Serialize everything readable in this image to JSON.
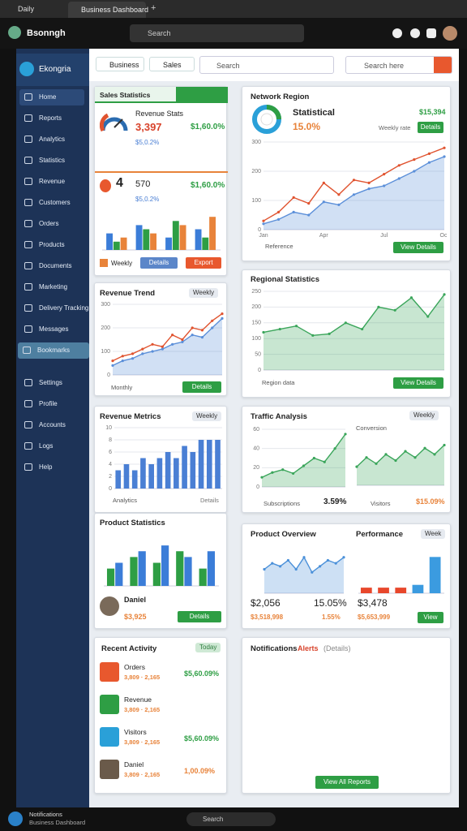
{
  "browser": {
    "tabs": [
      "Daily",
      "Business Dashboard"
    ],
    "new_tab": "+"
  },
  "header": {
    "title": "Bsonngh",
    "search": "Search"
  },
  "sidebar": {
    "brand": "Ekongria",
    "items": [
      "Home",
      "Reports",
      "Analytics",
      "Statistics",
      "Revenue",
      "Customers",
      "Orders",
      "Products",
      "Documents",
      "Marketing",
      "Delivery Tracking",
      "Messages",
      "Bookmarks",
      "Settings",
      "Profile",
      "Accounts",
      "Logs",
      "Help"
    ]
  },
  "toolbar": {
    "tabs": [
      "Business",
      "Sales"
    ],
    "search": "Search",
    "search2": "Search here"
  },
  "cards": {
    "sales": {
      "title": "Sales Statistics",
      "gauge_label": "Revenue Stats",
      "value": "3,397",
      "change": "$1,60.0%",
      "sub": "$5,0.2%",
      "count": "4",
      "value2": "570",
      "change2": "$1,60.0%",
      "sub2": "$5,0.2%",
      "chart": {
        "type": "bar",
        "ylim": [
          0,
          10
        ],
        "series": [
          {
            "color": "#3b7dd8",
            "values": [
              4,
              6,
              3,
              5
            ]
          },
          {
            "color": "#2e9e44",
            "values": [
              2,
              5,
              7,
              3
            ]
          },
          {
            "color": "#e8833a",
            "values": [
              3,
              4,
              6,
              8
            ]
          }
        ]
      },
      "actions": [
        "Weekly",
        "Details",
        "Export"
      ]
    },
    "network": {
      "title": "Network Region",
      "label": "Statistical",
      "rate": "15.0%",
      "amount": "$15,394",
      "legend": "Weekly rate",
      "button": "Details",
      "footer": "Reference",
      "footer_button": "View Details",
      "chart": {
        "type": "area",
        "ylim": [
          0,
          300
        ],
        "yticks": [
          0,
          100,
          200,
          300
        ],
        "categories": [
          "Jan",
          null,
          null,
          null,
          "Apr",
          null,
          null,
          null,
          "Jul",
          null,
          null,
          null,
          "Oct"
        ],
        "series": [
          {
            "color": "#5b8fd9",
            "area": true,
            "values": [
              20,
              35,
              60,
              50,
              95,
              85,
              120,
              140,
              150,
              175,
              200,
              230,
              250
            ]
          },
          {
            "color": "#e0532f",
            "values": [
              30,
              60,
              110,
              90,
              160,
              120,
              170,
              160,
              190,
              220,
              240,
              260,
              280
            ]
          }
        ]
      }
    },
    "trend": {
      "title": "Revenue Trend",
      "pill": "Weekly",
      "footer": "Monthly",
      "button": "Details",
      "chart": {
        "type": "line",
        "ylim": [
          0,
          300
        ],
        "yticks": [
          0,
          100,
          200,
          300
        ],
        "series": [
          {
            "color": "#5b8fd9",
            "area": true,
            "values": [
              40,
              60,
              70,
              90,
              100,
              110,
              130,
              140,
              170,
              160,
              200,
              240
            ]
          },
          {
            "color": "#e0532f",
            "values": [
              60,
              80,
              90,
              110,
              130,
              120,
              170,
              150,
              200,
              190,
              230,
              260
            ]
          }
        ]
      }
    },
    "region": {
      "title": "Regional Statistics",
      "footer": "Region data",
      "button": "View Details",
      "chart": {
        "type": "area",
        "ylim": [
          0,
          250
        ],
        "yticks": [
          0,
          50,
          100,
          150,
          200,
          250
        ],
        "series": [
          {
            "color": "#3aa55a",
            "area": true,
            "values": [
              120,
              130,
              140,
              110,
              115,
              150,
              130,
              200,
              190,
              230,
              170,
              240
            ]
          }
        ]
      }
    },
    "metrics": {
      "title": "Revenue Metrics",
      "pill": "Weekly",
      "footer": "Analytics",
      "link": "Details",
      "chart": {
        "type": "bar",
        "ylim": [
          0,
          10
        ],
        "yticks": [
          0,
          2,
          4,
          6,
          8,
          10
        ],
        "series": [
          {
            "color": "#4a7fd4",
            "values": [
              3,
              4,
              3,
              5,
              4,
              5,
              6,
              5,
              7,
              6,
              8,
              8,
              8
            ]
          }
        ]
      }
    },
    "traffic": {
      "title": "Traffic Analysis",
      "pill": "Weekly",
      "subtitle": "Conversion",
      "left_label": "Subscriptions",
      "left_value": "3.59%",
      "right_label": "Visitors",
      "right_value": "$15.09%",
      "chart": {
        "type": "area",
        "ylim": [
          0,
          60
        ],
        "yticks": [
          0,
          20,
          40,
          60
        ],
        "series": [
          {
            "color": "#3aa55a",
            "area": true,
            "values": [
              10,
              15,
              18,
              14,
              22,
              30,
              26,
              40,
              55
            ]
          }
        ]
      },
      "chart2": {
        "type": "area",
        "ylim": [
          0,
          80
        ],
        "series": [
          {
            "color": "#3aa55a",
            "area": true,
            "values": [
              30,
              45,
              35,
              50,
              40,
              55,
              45,
              60,
              50,
              65
            ]
          }
        ]
      }
    },
    "product": {
      "title": "Product Statistics",
      "name": "Daniel",
      "amount": "$3,925",
      "button": "Details",
      "chart": {
        "type": "bar",
        "ylim": [
          0,
          8
        ],
        "series": [
          {
            "color": "#2e9e44",
            "values": [
              3,
              5,
              4,
              6,
              3
            ]
          },
          {
            "color": "#3b7dd8",
            "values": [
              4,
              6,
              7,
              5,
              6
            ]
          }
        ]
      }
    },
    "overview": {
      "title": "Product Overview",
      "title2": "Performance",
      "pill": "Week",
      "v1": "$2,056",
      "v2": "15.05%",
      "v3": "$3,478",
      "s1": "$3,518,998",
      "s2": "1.55%",
      "s3": "$5,653,999",
      "button": "View",
      "chart": {
        "type": "area",
        "ylim": [
          0,
          80
        ],
        "series": [
          {
            "color": "#4a90d9",
            "area": true,
            "values": [
              40,
              50,
              45,
              55,
              40,
              60,
              35,
              45,
              55,
              50,
              60
            ]
          }
        ]
      },
      "chart2": {
        "type": "bar",
        "ylim": [
          0,
          8
        ],
        "series": [
          {
            "colors": [
              "#e8472b",
              "#e8472b",
              "#e8472b",
              "#3b9be0",
              "#3b9be0"
            ],
            "values": [
              1,
              1,
              1,
              1.5,
              6.5
            ]
          }
        ]
      }
    },
    "activity": {
      "title": "Recent Activity",
      "pill": "Today",
      "items": [
        {
          "name": "Orders",
          "detail": "3,809 · 2,165",
          "value": "$5,60.09%"
        },
        {
          "name": "Revenue",
          "detail": "3,809 · 2,165",
          "value": ""
        },
        {
          "name": "Visitors",
          "detail": "3,809 · 2,165",
          "value": "$5,60.09%"
        },
        {
          "name": "Daniel",
          "detail": "3,809 · 2,165",
          "value": "1,00.09%"
        }
      ]
    },
    "notes": {
      "title": "Notifications",
      "alert": "Alerts",
      "detail": "(Details)",
      "button": "View All Reports"
    }
  },
  "taskbar": {
    "line1": "Notifications",
    "line2": "Business Dashboard",
    "search": "Search"
  }
}
